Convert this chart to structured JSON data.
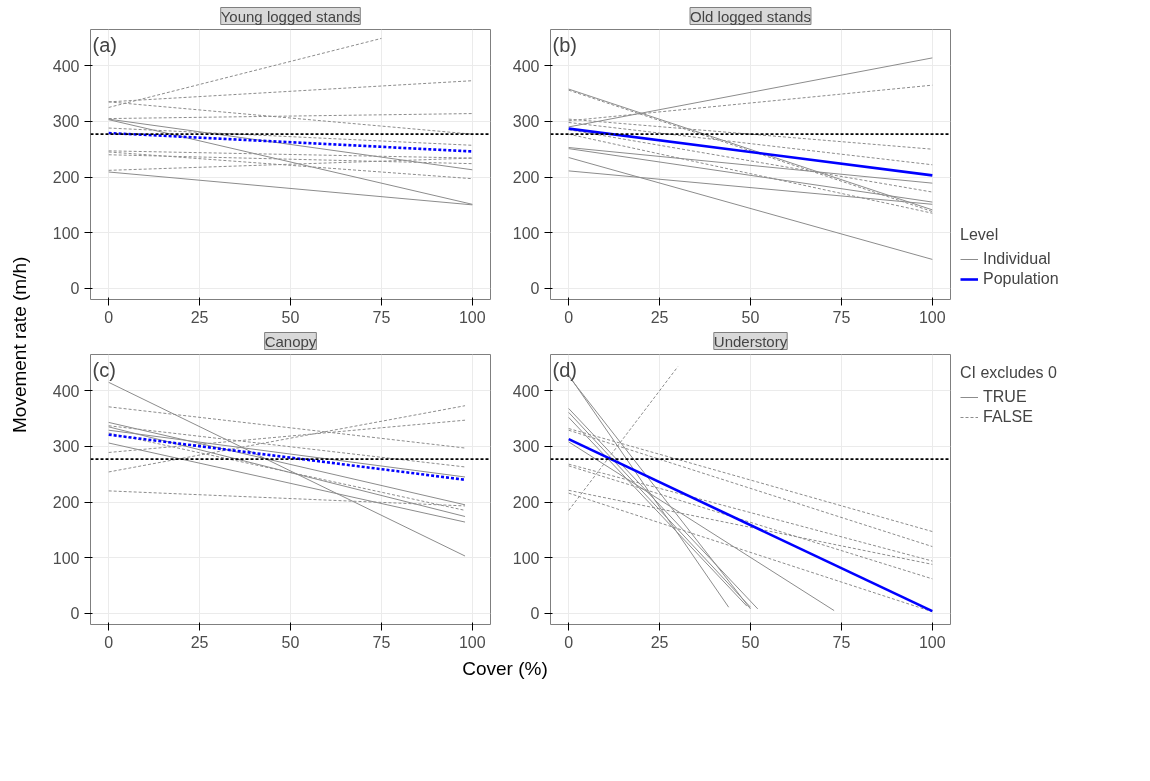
{
  "chart_data": [
    {
      "type": "line",
      "title": "Young logged stands",
      "ylabel": "Movement rate (m/h)",
      "annotations": [
        "(a)"
      ],
      "xlim": [
        -5,
        105
      ],
      "ylim": [
        -20,
        465
      ],
      "xticks": [
        0,
        25,
        50,
        75,
        100
      ],
      "yticks": [
        0,
        100,
        200,
        300,
        400
      ],
      "grid": true,
      "ref_lines": [
        {
          "axis": "y",
          "value": 277,
          "color": "#000000",
          "line_style": "dashed"
        }
      ],
      "series": [
        {
          "color": "#8c8c8c",
          "line_style": "dashed",
          "x": [
            0,
            75
          ],
          "values": [
            325,
            449
          ]
        },
        {
          "color": "#8c8c8c",
          "line_style": "dashed",
          "x": [
            0,
            100
          ],
          "values": [
            335,
            373
          ]
        },
        {
          "color": "#8c8c8c",
          "line_style": "dashed",
          "x": [
            0,
            100
          ],
          "values": [
            305,
            314
          ]
        },
        {
          "color": "#8c8c8c",
          "line_style": "dashed",
          "x": [
            0,
            100
          ],
          "values": [
            335,
            277
          ]
        },
        {
          "color": "#8c8c8c",
          "line_style": "dashed",
          "x": [
            0,
            100
          ],
          "values": [
            288,
            257
          ]
        },
        {
          "color": "#8c8c8c",
          "line_style": "dashed",
          "x": [
            0,
            100
          ],
          "values": [
            247,
            234
          ]
        },
        {
          "color": "#8c8c8c",
          "line_style": "dashed",
          "x": [
            0,
            100
          ],
          "values": [
            240,
            224
          ]
        },
        {
          "color": "#8c8c8c",
          "line_style": "dashed",
          "x": [
            0,
            100
          ],
          "values": [
            245,
            197
          ]
        },
        {
          "color": "#8c8c8c",
          "line_style": "dashed",
          "x": [
            0,
            100
          ],
          "values": [
            212,
            234
          ]
        },
        {
          "color": "#8c8c8c",
          "line_style": "solid",
          "x": [
            0,
            100
          ],
          "values": [
            304,
            213
          ]
        },
        {
          "color": "#8c8c8c",
          "line_style": "solid",
          "x": [
            0,
            100
          ],
          "values": [
            303,
            151
          ]
        },
        {
          "color": "#8c8c8c",
          "line_style": "solid",
          "x": [
            0,
            100
          ],
          "values": [
            209,
            150
          ]
        },
        {
          "color": "#0000ff",
          "line_style": "dashed",
          "x": [
            0,
            100
          ],
          "values": [
            279,
            246
          ]
        }
      ]
    },
    {
      "type": "line",
      "title": "Old logged stands",
      "annotations": [
        "(b)"
      ],
      "xlim": [
        -5,
        105
      ],
      "ylim": [
        -20,
        465
      ],
      "xticks": [
        0,
        25,
        50,
        75,
        100
      ],
      "yticks": [
        0,
        100,
        200,
        300,
        400
      ],
      "grid": true,
      "legend": "right",
      "legend_title": "Level",
      "ref_lines": [
        {
          "axis": "y",
          "value": 277,
          "color": "#000000",
          "line_style": "dashed"
        }
      ],
      "series": [
        {
          "name": "Individual",
          "color": "#8c8c8c",
          "line_style": "solid",
          "x": [
            0,
            100
          ],
          "values": [
            290,
            414
          ]
        },
        {
          "color": "#8c8c8c",
          "line_style": "solid",
          "x": [
            0,
            100
          ],
          "values": [
            358,
            141
          ]
        },
        {
          "color": "#8c8c8c",
          "line_style": "solid",
          "x": [
            0,
            100
          ],
          "values": [
            253,
            189
          ]
        },
        {
          "color": "#8c8c8c",
          "line_style": "solid",
          "x": [
            0,
            100
          ],
          "values": [
            251,
            155
          ]
        },
        {
          "color": "#8c8c8c",
          "line_style": "solid",
          "x": [
            0,
            100
          ],
          "values": [
            235,
            52
          ]
        },
        {
          "color": "#8c8c8c",
          "line_style": "solid",
          "x": [
            0,
            100
          ],
          "values": [
            211,
            151
          ]
        },
        {
          "color": "#8c8c8c",
          "line_style": "dashed",
          "x": [
            0,
            100
          ],
          "values": [
            301,
            365
          ]
        },
        {
          "color": "#8c8c8c",
          "line_style": "dashed",
          "x": [
            0,
            100
          ],
          "values": [
            356,
            138
          ]
        },
        {
          "color": "#8c8c8c",
          "line_style": "dashed",
          "x": [
            0,
            100
          ],
          "values": [
            304,
            250
          ]
        },
        {
          "color": "#8c8c8c",
          "line_style": "dashed",
          "x": [
            0,
            100
          ],
          "values": [
            298,
            222
          ]
        },
        {
          "color": "#8c8c8c",
          "line_style": "dashed",
          "x": [
            0,
            100
          ],
          "values": [
            285,
            173
          ]
        },
        {
          "color": "#8c8c8c",
          "line_style": "dashed",
          "x": [
            0,
            100
          ],
          "values": [
            277,
            135
          ]
        },
        {
          "name": "Population",
          "color": "#0000ff",
          "line_style": "solid",
          "x": [
            0,
            100
          ],
          "values": [
            287,
            203
          ]
        }
      ]
    },
    {
      "type": "line",
      "title": "Canopy",
      "xlabel": "Cover (%)",
      "annotations": [
        "(c)"
      ],
      "xlim": [
        -5,
        105
      ],
      "ylim": [
        -20,
        465
      ],
      "xticks": [
        0,
        25,
        50,
        75,
        100
      ],
      "yticks": [
        0,
        100,
        200,
        300,
        400
      ],
      "grid": true,
      "ref_lines": [
        {
          "axis": "y",
          "value": 277,
          "color": "#000000",
          "line_style": "dashed"
        }
      ],
      "series": [
        {
          "color": "#8c8c8c",
          "line_style": "solid",
          "x": [
            0,
            98
          ],
          "values": [
            415,
            103
          ]
        },
        {
          "color": "#8c8c8c",
          "line_style": "solid",
          "x": [
            0,
            98
          ],
          "values": [
            343,
            195
          ]
        },
        {
          "color": "#8c8c8c",
          "line_style": "solid",
          "x": [
            0,
            98
          ],
          "values": [
            335,
            174
          ]
        },
        {
          "color": "#8c8c8c",
          "line_style": "solid",
          "x": [
            0,
            98
          ],
          "values": [
            329,
            245
          ]
        },
        {
          "color": "#8c8c8c",
          "line_style": "solid",
          "x": [
            0,
            98
          ],
          "values": [
            306,
            164
          ]
        },
        {
          "color": "#8c8c8c",
          "line_style": "dashed",
          "x": [
            0,
            98
          ],
          "values": [
            371,
            297
          ]
        },
        {
          "color": "#8c8c8c",
          "line_style": "dashed",
          "x": [
            0,
            98
          ],
          "values": [
            254,
            373
          ]
        },
        {
          "color": "#8c8c8c",
          "line_style": "dashed",
          "x": [
            0,
            98
          ],
          "values": [
            289,
            347
          ]
        },
        {
          "color": "#8c8c8c",
          "line_style": "dashed",
          "x": [
            0,
            98
          ],
          "values": [
            337,
            263
          ]
        },
        {
          "color": "#8c8c8c",
          "line_style": "dashed",
          "x": [
            0,
            98
          ],
          "values": [
            220,
            193
          ]
        },
        {
          "color": "#8c8c8c",
          "line_style": "dashed",
          "x": [
            0,
            98
          ],
          "values": [
            324,
            185
          ]
        },
        {
          "color": "#0000ff",
          "line_style": "dashed",
          "x": [
            0,
            98
          ],
          "values": [
            321,
            240
          ]
        }
      ]
    },
    {
      "type": "line",
      "title": "Understory",
      "annotations": [
        "(d)"
      ],
      "xlim": [
        -5,
        105
      ],
      "ylim": [
        -20,
        465
      ],
      "xticks": [
        0,
        25,
        50,
        75,
        100
      ],
      "yticks": [
        0,
        100,
        200,
        300,
        400
      ],
      "grid": true,
      "ref_lines": [
        {
          "axis": "y",
          "value": 277,
          "color": "#000000",
          "line_style": "dashed"
        }
      ],
      "series": [
        {
          "name": "TRUE",
          "color": "#8c8c8c",
          "line_style": "solid",
          "x": [
            0,
            44
          ],
          "values": [
            428,
            11
          ]
        },
        {
          "color": "#8c8c8c",
          "line_style": "solid",
          "x": [
            0,
            50
          ],
          "values": [
            426,
            8
          ]
        },
        {
          "color": "#8c8c8c",
          "line_style": "solid",
          "x": [
            0,
            52
          ],
          "values": [
            368,
            8
          ]
        },
        {
          "color": "#8c8c8c",
          "line_style": "solid",
          "x": [
            0,
            50
          ],
          "values": [
            361,
            11
          ]
        },
        {
          "color": "#8c8c8c",
          "line_style": "solid",
          "x": [
            0,
            49
          ],
          "values": [
            352,
            13
          ]
        },
        {
          "color": "#8c8c8c",
          "line_style": "solid",
          "x": [
            0,
            73
          ],
          "values": [
            308,
            5
          ]
        },
        {
          "name": "FALSE",
          "color": "#8c8c8c",
          "line_style": "dashed",
          "x": [
            0,
            30
          ],
          "values": [
            185,
            443
          ]
        },
        {
          "color": "#8c8c8c",
          "line_style": "dashed",
          "x": [
            0,
            100
          ],
          "values": [
            332,
            147
          ]
        },
        {
          "color": "#8c8c8c",
          "line_style": "dashed",
          "x": [
            0,
            100
          ],
          "values": [
            329,
            120
          ]
        },
        {
          "color": "#8c8c8c",
          "line_style": "dashed",
          "x": [
            0,
            100
          ],
          "values": [
            268,
            94
          ]
        },
        {
          "color": "#8c8c8c",
          "line_style": "dashed",
          "x": [
            0,
            100
          ],
          "values": [
            265,
            62
          ]
        },
        {
          "color": "#8c8c8c",
          "line_style": "dashed",
          "x": [
            0,
            100
          ],
          "values": [
            221,
            88
          ]
        },
        {
          "color": "#8c8c8c",
          "line_style": "dashed",
          "x": [
            0,
            100
          ],
          "values": [
            216,
            3
          ]
        },
        {
          "color": "#0000ff",
          "line_style": "solid",
          "x": [
            0,
            100
          ],
          "values": [
            313,
            4
          ]
        }
      ],
      "legend": "right",
      "legend_title": "CI excludes 0"
    }
  ]
}
